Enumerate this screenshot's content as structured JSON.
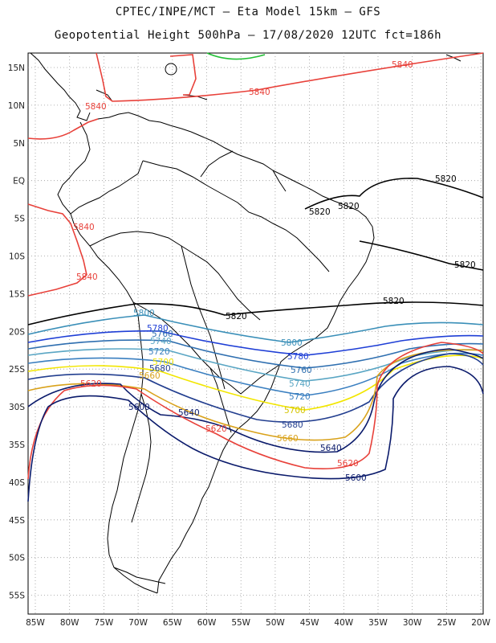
{
  "header": {
    "line1": "CPTEC/INPE/MCT –  Eta Model 15km – GFS",
    "line2": "Geopotential Height 500hPa – 17/08/2020 12UTC fct=186h"
  },
  "axes": {
    "lat_labels": [
      "15N",
      "10N",
      "5N",
      "EQ",
      "5S",
      "10S",
      "15S",
      "20S",
      "25S",
      "30S",
      "35S",
      "40S",
      "45S",
      "50S",
      "55S"
    ],
    "lon_labels": [
      "85W",
      "80W",
      "75W",
      "70W",
      "65W",
      "60W",
      "55W",
      "50W",
      "45W",
      "40W",
      "35W",
      "30W",
      "25W",
      "20W"
    ],
    "grid": "dotted"
  },
  "contours": [
    {
      "id": "c5600",
      "value": "5600",
      "color": "#0a1a6b"
    },
    {
      "id": "c5620",
      "value": "5620",
      "color": "#e8413a"
    },
    {
      "id": "c5640",
      "value": "5640",
      "color": "#0a1a6b"
    },
    {
      "id": "c5660",
      "value": "5660",
      "color": "#d9a21b"
    },
    {
      "id": "c5680",
      "value": "5680",
      "color": "#223e8f"
    },
    {
      "id": "c5700",
      "value": "5700",
      "color": "#f2e600"
    },
    {
      "id": "c5720",
      "value": "5720",
      "color": "#3a7fc0"
    },
    {
      "id": "c5740",
      "value": "5740",
      "color": "#5aa6c4"
    },
    {
      "id": "c5760",
      "value": "5760",
      "color": "#2f6fb0"
    },
    {
      "id": "c5780",
      "value": "5780",
      "color": "#1f3fd6"
    },
    {
      "id": "c5800",
      "value": "5800",
      "color": "#3a8fb8"
    },
    {
      "id": "c5820",
      "value": "5820",
      "color": "#000000"
    },
    {
      "id": "c5840",
      "value": "5840",
      "color": "#e8413a"
    },
    {
      "id": "c5860",
      "value": "5860",
      "color": "#22c035"
    }
  ],
  "labels": {
    "l5840a": "5840",
    "l5840b": "5840",
    "l5840c": "5840",
    "l5840d": "5840",
    "l5840e": "5840",
    "l5820a": "5820",
    "l5820b": "5820",
    "l5820c": "5820",
    "l5820d": "5820",
    "l5820e": "5820",
    "l5820f": "5820",
    "l5800a": "5800",
    "l5800b": "5800",
    "l5780a": "5780",
    "l5780b": "5780",
    "l5760a": "5760",
    "l5760b": "5760",
    "l5740a": "5740",
    "l5740b": "5740",
    "l5720a": "5720",
    "l5720b": "5720",
    "l5700a": "5700",
    "l5700b": "5700",
    "l5680a": "5680",
    "l5680b": "5680",
    "l5660a": "5660",
    "l5660b": "5660",
    "l5640a": "5640",
    "l5640b": "5640",
    "l5620a": "5620",
    "l5620b": "5620",
    "l5620c": "5620",
    "l5600a": "5600",
    "l5600b": "5600"
  }
}
